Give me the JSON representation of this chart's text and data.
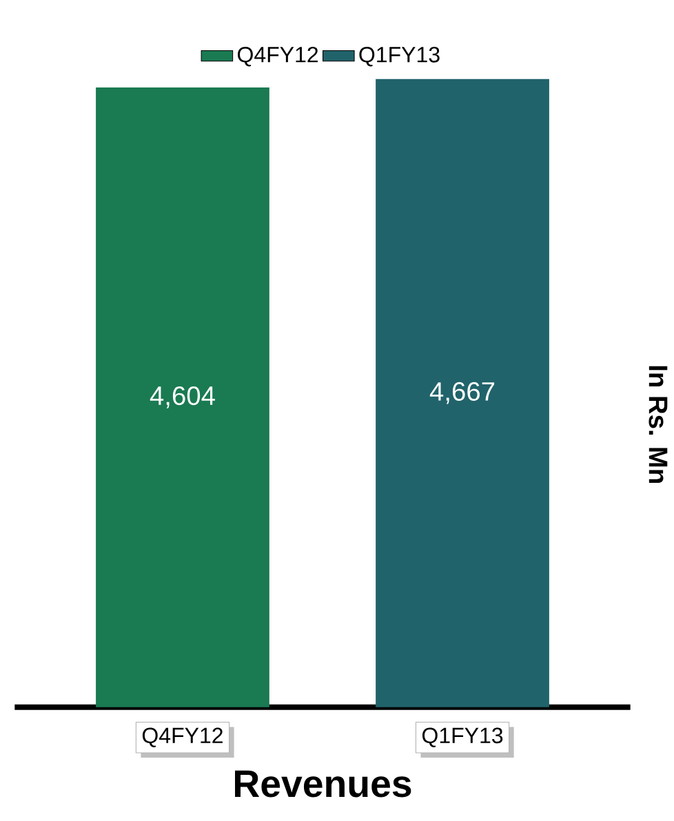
{
  "chart_data": {
    "type": "bar",
    "xlabel": "Revenues",
    "ylabel": "In Rs. Mn",
    "categories": [
      "Q4FY12",
      "Q1FY13"
    ],
    "series": [
      {
        "name": "Q4FY12",
        "color": "#1a7a52",
        "values": [
          4604,
          null
        ],
        "value_labels": [
          "4,604",
          null
        ]
      },
      {
        "name": "Q1FY13",
        "color": "#21636b",
        "values": [
          null,
          4667
        ],
        "value_labels": [
          null,
          "4,667"
        ]
      }
    ],
    "legend": "top"
  }
}
